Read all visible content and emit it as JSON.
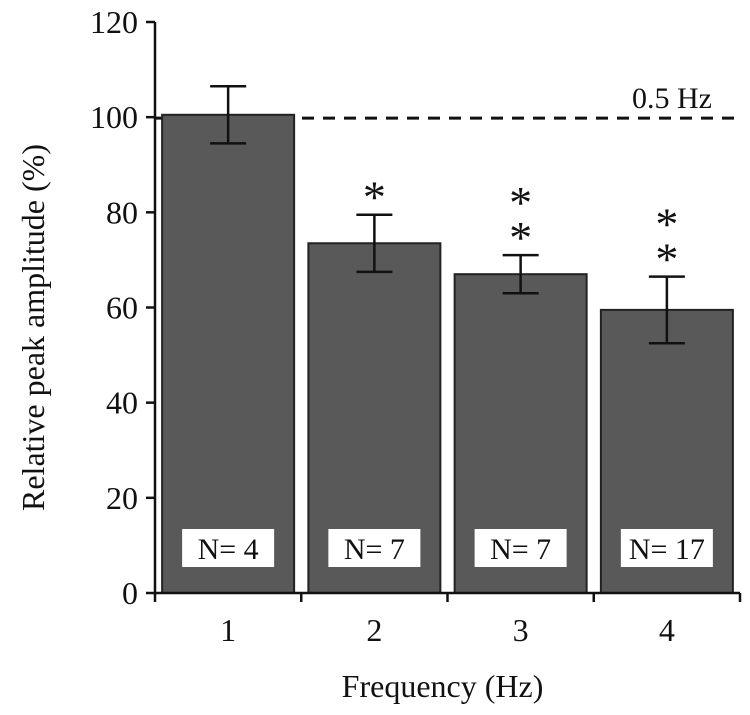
{
  "chart_data": {
    "type": "bar",
    "categories": [
      "1",
      "2",
      "3",
      "4"
    ],
    "values": [
      100.5,
      73.5,
      67,
      59.5
    ],
    "errors": [
      6,
      6,
      4,
      7
    ],
    "n_labels": [
      "N= 4",
      "N= 7",
      "N= 7",
      "N= 17"
    ],
    "significance": [
      "",
      "*",
      "**",
      "**"
    ],
    "ylim": [
      0,
      120
    ],
    "yticks": [
      0,
      20,
      40,
      60,
      80,
      100,
      120
    ],
    "xlabel": "Frequency (Hz)",
    "ylabel": "Relative peak amplitude (%)",
    "reference_line": {
      "value": 100,
      "label": "0.5 Hz",
      "style": "dashed"
    },
    "grid": false,
    "colors": {
      "bar": "#595959",
      "axis": "#111111",
      "label_box": "#ffffff"
    }
  }
}
